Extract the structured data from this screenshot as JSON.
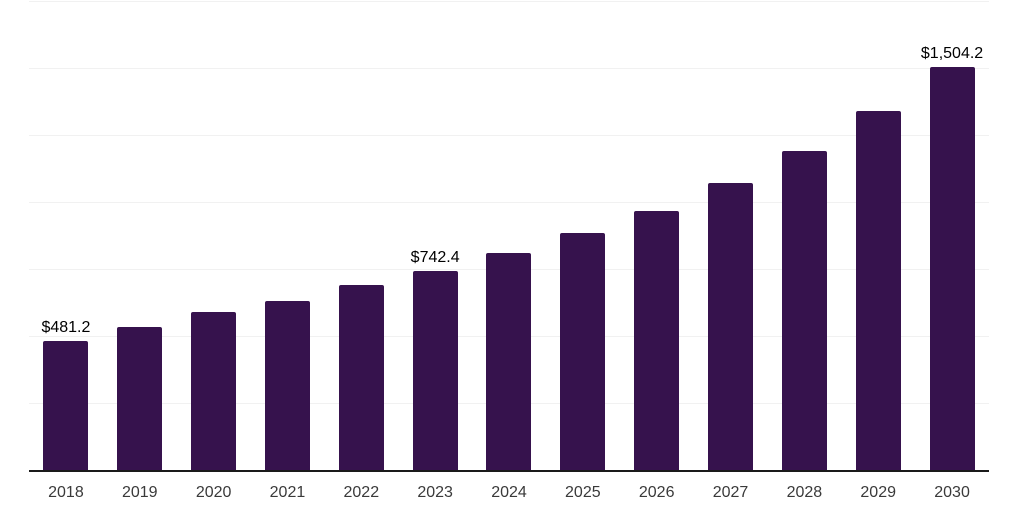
{
  "chart_data": {
    "type": "bar",
    "title": "",
    "xlabel": "",
    "ylabel": "",
    "categories": [
      "2018",
      "2019",
      "2020",
      "2021",
      "2022",
      "2023",
      "2024",
      "2025",
      "2026",
      "2027",
      "2028",
      "2029",
      "2030"
    ],
    "values": [
      481.2,
      535,
      590,
      632,
      690,
      742.4,
      810,
      885,
      967,
      1071,
      1190,
      1340,
      1504.2
    ],
    "data_labels": [
      "$481.2",
      "",
      "",
      "",
      "",
      "$742.4",
      "",
      "",
      "",
      "",
      "",
      "",
      "$1,504.2"
    ],
    "labeled_points": [
      {
        "category": "2018",
        "label": "$481.2",
        "value": 481.2
      },
      {
        "category": "2023",
        "label": "$742.4",
        "value": 742.4
      },
      {
        "category": "2030",
        "label": "$1,504.2",
        "value": 1504.2
      }
    ],
    "ylim": [
      0,
      1750
    ],
    "grid_step": 250,
    "grid": "horizontal-only",
    "legend": "none",
    "colors": {
      "bar": "#36124D",
      "axis_line": "#1A1A1A",
      "grid": "#F1F1F1",
      "tick_label": "#3A3A3A",
      "data_label": "#000000",
      "background": "#FFFFFF"
    }
  }
}
